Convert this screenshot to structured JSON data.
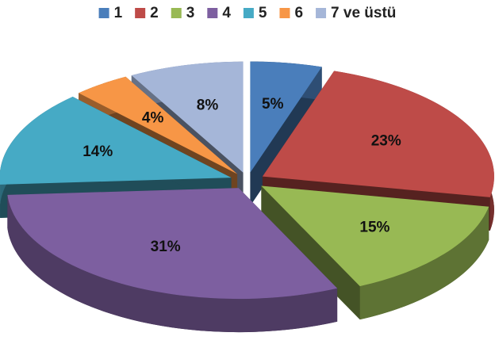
{
  "chart_data": {
    "type": "pie",
    "categories": [
      "1",
      "2",
      "3",
      "4",
      "5",
      "6",
      "7 ve üstü"
    ],
    "values": [
      5,
      23,
      15,
      31,
      14,
      4,
      8
    ],
    "value_labels": [
      "5%",
      "23%",
      "15%",
      "31%",
      "14%",
      "4%",
      "8%"
    ],
    "colors": [
      "#4a7ebb",
      "#be4b48",
      "#98b954",
      "#7d5fa0",
      "#46aac5",
      "#f79646",
      "#a5b6d8"
    ],
    "legend": "top"
  }
}
